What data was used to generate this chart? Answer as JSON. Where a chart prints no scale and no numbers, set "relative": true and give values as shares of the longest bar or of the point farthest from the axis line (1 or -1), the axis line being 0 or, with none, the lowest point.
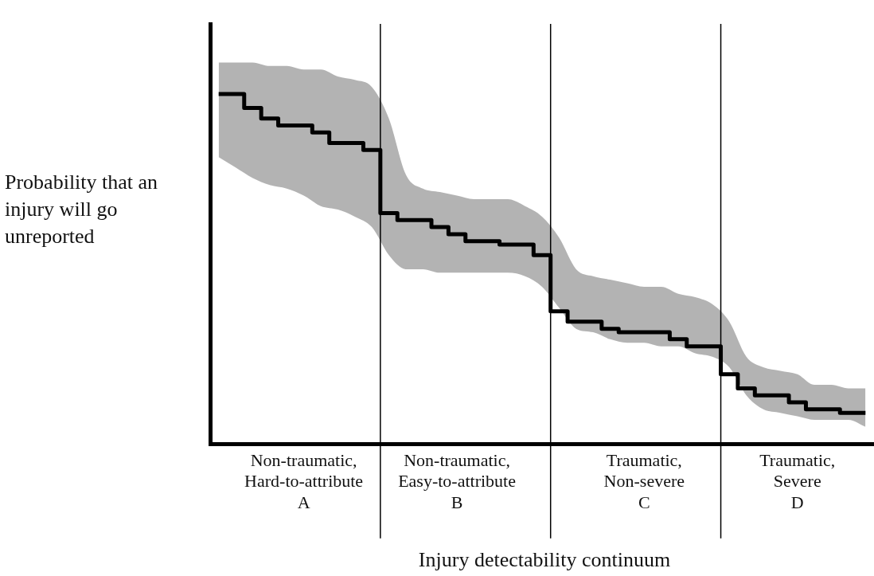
{
  "chart_data": {
    "type": "step",
    "relative": true,
    "xlabel": "Injury detectability continuum",
    "ylabel": "Probability that an injury will go unreported",
    "categories": [
      null,
      null,
      null,
      null,
      null,
      "Non-traumatic,\nHard-to-attribute\nA",
      null,
      null,
      null,
      null,
      null,
      null,
      null,
      null,
      "Non-traumatic,\nEasy-to-attribute\nB",
      null,
      null,
      null,
      null,
      null,
      null,
      null,
      null,
      null,
      null,
      "Traumatic,\nNon-severe\nC",
      null,
      null,
      null,
      null,
      null,
      null,
      null,
      null,
      "Traumatic,\nSevere\nD",
      null,
      null,
      null,
      null
    ],
    "grid": false,
    "legend": false,
    "marker": "none",
    "line_style": "solid",
    "series": [
      {
        "color": "#000000",
        "values": [
          1,
          1,
          0.96,
          0.93,
          0.91,
          0.91,
          0.89,
          0.86,
          0.86,
          0.84,
          0.66,
          0.64,
          0.64,
          0.62,
          0.6,
          0.58,
          0.58,
          0.57,
          0.57,
          0.54,
          0.38,
          0.35,
          0.35,
          0.33,
          0.32,
          0.32,
          0.32,
          0.3,
          0.28,
          0.28,
          0.2,
          0.16,
          0.14,
          0.14,
          0.12,
          0.1,
          0.1,
          0.09,
          0.09
        ],
        "upper": [
          1.09,
          1.09,
          1.09,
          1.08,
          1.08,
          1.07,
          1.07,
          1.05,
          1.04,
          1.02,
          0.93,
          0.77,
          0.73,
          0.72,
          0.71,
          0.7,
          0.7,
          0.7,
          0.68,
          0.65,
          0.59,
          0.5,
          0.48,
          0.47,
          0.46,
          0.45,
          0.45,
          0.43,
          0.42,
          0.4,
          0.35,
          0.25,
          0.22,
          0.21,
          0.2,
          0.17,
          0.17,
          0.16,
          0.16
        ],
        "lower": [
          0.82,
          0.79,
          0.76,
          0.74,
          0.73,
          0.71,
          0.68,
          0.67,
          0.65,
          0.62,
          0.54,
          0.5,
          0.5,
          0.49,
          0.49,
          0.49,
          0.49,
          0.49,
          0.48,
          0.45,
          0.39,
          0.33,
          0.32,
          0.3,
          0.29,
          0.29,
          0.28,
          0.28,
          0.26,
          0.25,
          0.22,
          0.14,
          0.1,
          0.09,
          0.08,
          0.07,
          0.07,
          0.07,
          0.05
        ]
      }
    ]
  }
}
